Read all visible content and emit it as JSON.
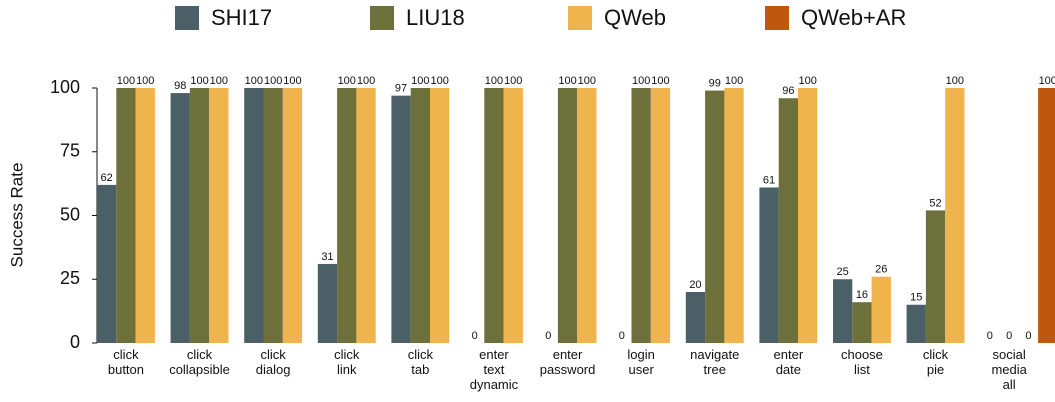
{
  "chart_data": {
    "type": "bar",
    "y_label": "Success Rate",
    "categories": [
      "click button",
      "click collapsible",
      "click dialog",
      "click link",
      "click tab",
      "enter text dynamic",
      "enter password",
      "login user",
      "navigate tree",
      "enter date",
      "choose list",
      "click pie",
      "social media all"
    ],
    "series": [
      {
        "name": "SHI17",
        "color": "#4a6066",
        "values": [
          62,
          98,
          100,
          31,
          97,
          0,
          0,
          0,
          20,
          61,
          25,
          15,
          0
        ]
      },
      {
        "name": "LIU18",
        "color": "#6e703b",
        "values": [
          100,
          100,
          100,
          100,
          100,
          100,
          100,
          100,
          99,
          96,
          16,
          52,
          0
        ]
      },
      {
        "name": "QWeb",
        "color": "#f0b44c",
        "values": [
          100,
          100,
          100,
          100,
          100,
          100,
          100,
          100,
          100,
          100,
          26,
          100,
          0
        ]
      },
      {
        "name": "QWeb+AR",
        "color": "#c0570f",
        "values": [
          null,
          null,
          null,
          null,
          null,
          null,
          null,
          null,
          null,
          null,
          null,
          null,
          100
        ]
      }
    ],
    "ylim": [
      0,
      100
    ],
    "yticks": [
      0,
      25,
      50,
      75,
      100
    ],
    "grid": false
  }
}
